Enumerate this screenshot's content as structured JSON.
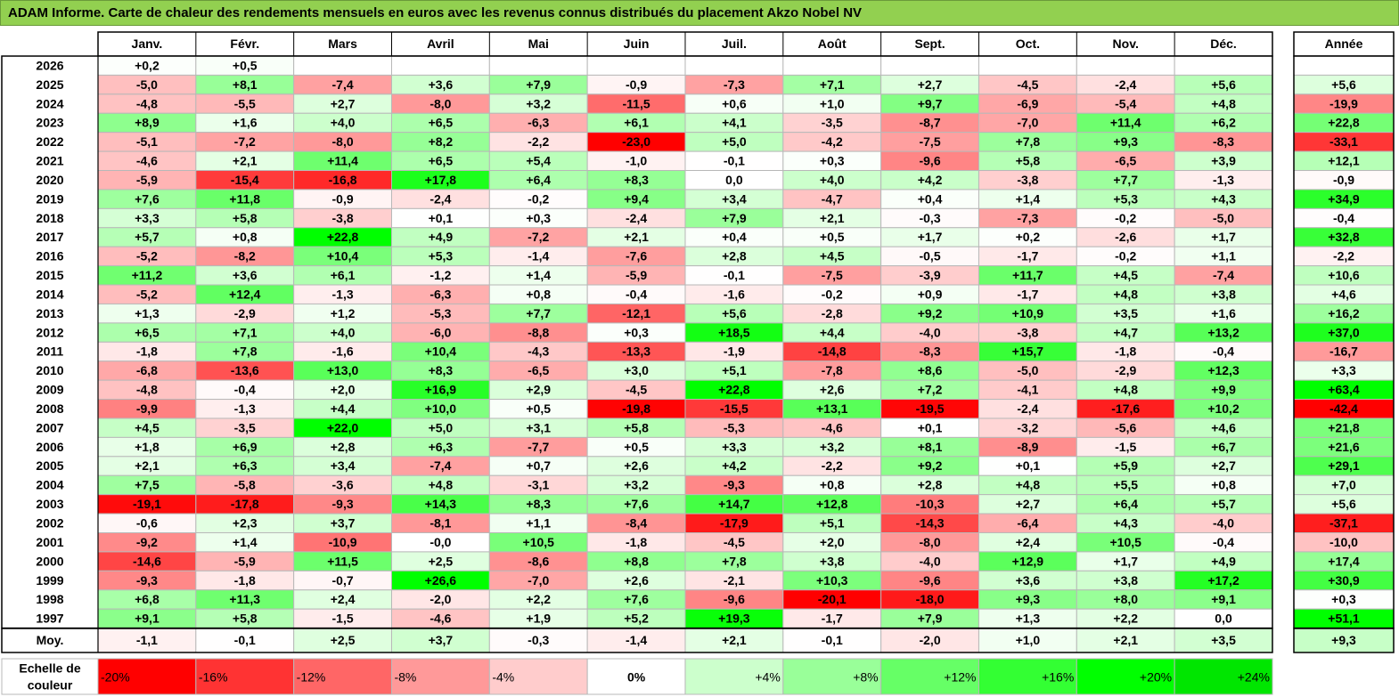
{
  "title": "ADAM Informe. Carte de chaleur des rendements mensuels en euros avec les revenus connus distribués du placement Akzo Nobel NV",
  "chart_data": {
    "type": "heatmap",
    "columns": [
      "Janv.",
      "Févr.",
      "Mars",
      "Avril",
      "Mai",
      "Juin",
      "Juil.",
      "Août",
      "Sept.",
      "Oct.",
      "Nov.",
      "Déc."
    ],
    "year_header": "Année",
    "rows": [
      {
        "label": "2026",
        "values": [
          "+0,2",
          "+0,5",
          null,
          null,
          null,
          null,
          null,
          null,
          null,
          null,
          null,
          null
        ],
        "year": null
      },
      {
        "label": "2025",
        "values": [
          "-5,0",
          "+8,1",
          "-7,4",
          "+3,6",
          "+7,9",
          "-0,9",
          "-7,3",
          "+7,1",
          "+2,7",
          "-4,5",
          "-2,4",
          "+5,6"
        ],
        "year": "+5,6"
      },
      {
        "label": "2024",
        "values": [
          "-4,8",
          "-5,5",
          "+2,7",
          "-8,0",
          "+3,2",
          "-11,5",
          "+0,6",
          "+1,0",
          "+9,7",
          "-6,9",
          "-5,4",
          "+4,8"
        ],
        "year": "-19,9"
      },
      {
        "label": "2023",
        "values": [
          "+8,9",
          "+1,6",
          "+4,0",
          "+6,5",
          "-6,3",
          "+6,1",
          "+4,1",
          "-3,5",
          "-8,7",
          "-7,0",
          "+11,4",
          "+6,2"
        ],
        "year": "+22,8"
      },
      {
        "label": "2022",
        "values": [
          "-5,1",
          "-7,2",
          "-8,0",
          "+8,2",
          "-2,2",
          "-23,0",
          "+5,0",
          "-4,2",
          "-7,5",
          "+7,8",
          "+9,3",
          "-8,3"
        ],
        "year": "-33,1"
      },
      {
        "label": "2021",
        "values": [
          "-4,6",
          "+2,1",
          "+11,4",
          "+6,5",
          "+5,4",
          "-1,0",
          "-0,1",
          "+0,3",
          "-9,6",
          "+5,8",
          "-6,5",
          "+3,9"
        ],
        "year": "+12,1"
      },
      {
        "label": "2020",
        "values": [
          "-5,9",
          "-15,4",
          "-16,8",
          "+17,8",
          "+6,4",
          "+8,3",
          "0,0",
          "+4,0",
          "+4,2",
          "-3,8",
          "+7,7",
          "-1,3"
        ],
        "year": "-0,9"
      },
      {
        "label": "2019",
        "values": [
          "+7,6",
          "+11,8",
          "-0,9",
          "-2,4",
          "-0,2",
          "+9,4",
          "+3,4",
          "-4,7",
          "+0,4",
          "+1,4",
          "+5,3",
          "+4,3"
        ],
        "year": "+34,9"
      },
      {
        "label": "2018",
        "values": [
          "+3,3",
          "+5,8",
          "-3,8",
          "+0,1",
          "+0,3",
          "-2,4",
          "+7,9",
          "+2,1",
          "-0,3",
          "-7,3",
          "-0,2",
          "-5,0"
        ],
        "year": "-0,4"
      },
      {
        "label": "2017",
        "values": [
          "+5,7",
          "+0,8",
          "+22,8",
          "+4,9",
          "-7,2",
          "+2,1",
          "+0,4",
          "+0,5",
          "+1,7",
          "+0,2",
          "-2,6",
          "+1,7"
        ],
        "year": "+32,8"
      },
      {
        "label": "2016",
        "values": [
          "-5,2",
          "-8,2",
          "+10,4",
          "+5,3",
          "-1,4",
          "-7,6",
          "+2,8",
          "+4,5",
          "-0,5",
          "-1,7",
          "-0,2",
          "+1,1"
        ],
        "year": "-2,2"
      },
      {
        "label": "2015",
        "values": [
          "+11,2",
          "+3,6",
          "+6,1",
          "-1,2",
          "+1,4",
          "-5,9",
          "-0,1",
          "-7,5",
          "-3,9",
          "+11,7",
          "+4,5",
          "-7,4"
        ],
        "year": "+10,6"
      },
      {
        "label": "2014",
        "values": [
          "-5,2",
          "+12,4",
          "-1,3",
          "-6,3",
          "+0,8",
          "-0,4",
          "-1,6",
          "-0,2",
          "+0,9",
          "-1,7",
          "+4,8",
          "+3,8"
        ],
        "year": "+4,6"
      },
      {
        "label": "2013",
        "values": [
          "+1,3",
          "-2,9",
          "+1,2",
          "-5,3",
          "+7,7",
          "-12,1",
          "+5,6",
          "-2,8",
          "+9,2",
          "+10,9",
          "+3,5",
          "+1,6"
        ],
        "year": "+16,2"
      },
      {
        "label": "2012",
        "values": [
          "+6,5",
          "+7,1",
          "+4,0",
          "-6,0",
          "-8,8",
          "+0,3",
          "+18,5",
          "+4,4",
          "-4,0",
          "-3,8",
          "+4,7",
          "+13,2"
        ],
        "year": "+37,0"
      },
      {
        "label": "2011",
        "values": [
          "-1,8",
          "+7,8",
          "-1,6",
          "+10,4",
          "-4,3",
          "-13,3",
          "-1,9",
          "-14,8",
          "-8,3",
          "+15,7",
          "-1,8",
          "-0,4"
        ],
        "year": "-16,7"
      },
      {
        "label": "2010",
        "values": [
          "-6,8",
          "-13,6",
          "+13,0",
          "+8,3",
          "-6,5",
          "+3,0",
          "+5,1",
          "-7,8",
          "+8,6",
          "-5,0",
          "-2,9",
          "+12,3"
        ],
        "year": "+3,3"
      },
      {
        "label": "2009",
        "values": [
          "-4,8",
          "-0,4",
          "+2,0",
          "+16,9",
          "+2,9",
          "-4,5",
          "+22,8",
          "+2,6",
          "+7,2",
          "-4,1",
          "+4,8",
          "+9,9"
        ],
        "year": "+63,4"
      },
      {
        "label": "2008",
        "values": [
          "-9,9",
          "-1,3",
          "+4,4",
          "+10,0",
          "+0,5",
          "-19,8",
          "-15,5",
          "+13,1",
          "-19,5",
          "-2,4",
          "-17,6",
          "+10,2"
        ],
        "year": "-42,4"
      },
      {
        "label": "2007",
        "values": [
          "+4,5",
          "-3,5",
          "+22,0",
          "+5,0",
          "+3,1",
          "+5,8",
          "-5,3",
          "-4,6",
          "+0,1",
          "-3,2",
          "-5,6",
          "+4,6"
        ],
        "year": "+21,8"
      },
      {
        "label": "2006",
        "values": [
          "+1,8",
          "+6,9",
          "+2,8",
          "+6,3",
          "-7,7",
          "+0,5",
          "+3,3",
          "+3,2",
          "+8,1",
          "-8,9",
          "-1,5",
          "+6,7"
        ],
        "year": "+21,6"
      },
      {
        "label": "2005",
        "values": [
          "+2,1",
          "+6,3",
          "+3,4",
          "-7,4",
          "+0,7",
          "+2,6",
          "+4,2",
          "-2,2",
          "+9,2",
          "+0,1",
          "+5,9",
          "+2,7"
        ],
        "year": "+29,1"
      },
      {
        "label": "2004",
        "values": [
          "+7,5",
          "-5,8",
          "-3,6",
          "+4,8",
          "-3,1",
          "+3,2",
          "-9,3",
          "+0,8",
          "+2,8",
          "+4,8",
          "+5,5",
          "+0,8"
        ],
        "year": "+7,0"
      },
      {
        "label": "2003",
        "values": [
          "-19,1",
          "-17,8",
          "-9,3",
          "+14,3",
          "+8,3",
          "+7,6",
          "+14,7",
          "+12,8",
          "-10,3",
          "+2,7",
          "+6,4",
          "+5,7"
        ],
        "year": "+5,6"
      },
      {
        "label": "2002",
        "values": [
          "-0,6",
          "+2,3",
          "+3,7",
          "-8,1",
          "+1,1",
          "-8,4",
          "-17,9",
          "+5,1",
          "-14,3",
          "-6,4",
          "+4,3",
          "-4,0"
        ],
        "year": "-37,1"
      },
      {
        "label": "2001",
        "values": [
          "-9,2",
          "+1,4",
          "-10,9",
          "-0,0",
          "+10,5",
          "-1,8",
          "-4,5",
          "+2,0",
          "-8,0",
          "+2,4",
          "+10,5",
          "-0,4"
        ],
        "year": "-10,0"
      },
      {
        "label": "2000",
        "values": [
          "-14,6",
          "-5,9",
          "+11,5",
          "+2,5",
          "-8,6",
          "+8,8",
          "+7,8",
          "+3,8",
          "-4,0",
          "+12,9",
          "+1,7",
          "+4,9"
        ],
        "year": "+17,4"
      },
      {
        "label": "1999",
        "values": [
          "-9,3",
          "-1,8",
          "-0,7",
          "+26,6",
          "-7,0",
          "+2,6",
          "-2,1",
          "+10,3",
          "-9,6",
          "+3,6",
          "+3,8",
          "+17,2"
        ],
        "year": "+30,9"
      },
      {
        "label": "1998",
        "values": [
          "+6,8",
          "+11,3",
          "+2,4",
          "-2,0",
          "+2,2",
          "+7,6",
          "-9,6",
          "-20,1",
          "-18,0",
          "+9,3",
          "+8,0",
          "+9,1"
        ],
        "year": "+0,3"
      },
      {
        "label": "1997",
        "values": [
          "+9,1",
          "+5,8",
          "-1,5",
          "-4,6",
          "+1,9",
          "+5,2",
          "+19,3",
          "-1,7",
          "+7,9",
          "+1,3",
          "+2,2",
          "0,0"
        ],
        "year": "+51,1"
      }
    ],
    "average": {
      "label": "Moy.",
      "values": [
        "-1,1",
        "-0,1",
        "+2,5",
        "+3,7",
        "-0,3",
        "-1,4",
        "+2,1",
        "-0,1",
        "-2,0",
        "+1,0",
        "+2,1",
        "+3,5"
      ],
      "year": "+9,3"
    },
    "scale": {
      "label_lines": [
        "Echelle de",
        "couleur"
      ],
      "stops": [
        {
          "label": "-20%",
          "value": -20,
          "color": "#ff0000"
        },
        {
          "label": "-16%",
          "value": -16,
          "color": "#ff3333"
        },
        {
          "label": "-12%",
          "value": -12,
          "color": "#ff6666"
        },
        {
          "label": "-8%",
          "value": -8,
          "color": "#ff9999"
        },
        {
          "label": "-4%",
          "value": -4,
          "color": "#ffcccc"
        },
        {
          "label": "0%",
          "value": 0,
          "color": "#ffffff"
        },
        {
          "label": "+4%",
          "value": 4,
          "color": "#ccffcc"
        },
        {
          "label": "+8%",
          "value": 8,
          "color": "#99ff99"
        },
        {
          "label": "+12%",
          "value": 12,
          "color": "#66ff66"
        },
        {
          "label": "+16%",
          "value": 16,
          "color": "#33ff33"
        },
        {
          "label": "+20%",
          "value": 20,
          "color": "#00ff00"
        },
        {
          "label": "+24%",
          "value": 24,
          "color": "#00e600"
        }
      ]
    }
  }
}
